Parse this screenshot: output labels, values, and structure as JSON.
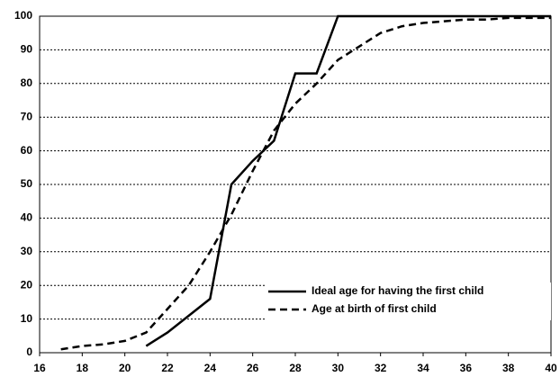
{
  "chart_data": {
    "type": "line",
    "x": [
      16,
      17,
      18,
      19,
      20,
      21,
      22,
      23,
      24,
      25,
      26,
      27,
      28,
      29,
      30,
      31,
      32,
      33,
      34,
      35,
      36,
      37,
      38,
      39,
      40
    ],
    "series": [
      {
        "name": "Ideal age for having the first child",
        "color": "#000000",
        "dash": "solid",
        "values": [
          null,
          null,
          null,
          null,
          null,
          2,
          6,
          11,
          16,
          50,
          57,
          63,
          83,
          83,
          100,
          100,
          100,
          100,
          100,
          100,
          100,
          100,
          100,
          100,
          100
        ]
      },
      {
        "name": "Age at birth of first child",
        "color": "#000000",
        "dash": "dashed",
        "values": [
          null,
          1,
          2,
          2.5,
          3.5,
          6,
          13,
          20,
          30,
          41,
          54,
          66,
          74,
          80,
          87,
          91,
          95,
          97,
          98,
          98.5,
          99,
          99,
          99.5,
          99.5,
          99.5
        ]
      }
    ],
    "xlim": [
      16,
      40
    ],
    "xticks": [
      16,
      18,
      20,
      22,
      24,
      26,
      28,
      30,
      32,
      34,
      36,
      38,
      40
    ],
    "ylim": [
      0,
      100
    ],
    "yticks": [
      0,
      10,
      20,
      30,
      40,
      50,
      60,
      70,
      80,
      90,
      100
    ],
    "grid": true,
    "legend": "lower right"
  }
}
